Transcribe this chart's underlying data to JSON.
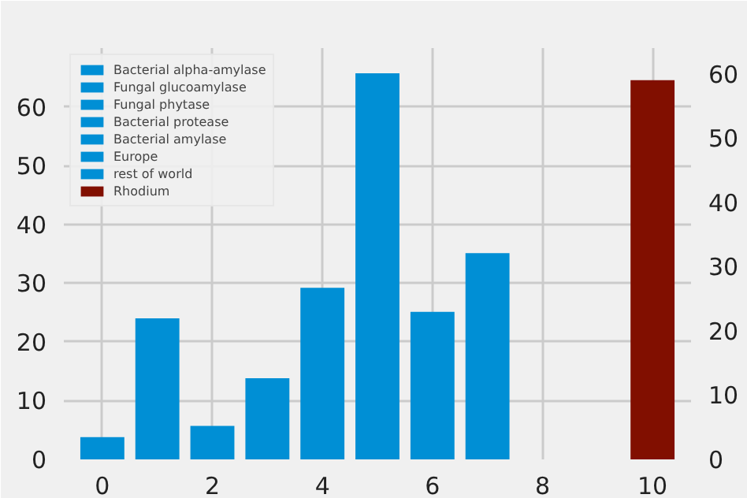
{
  "chart_data": {
    "type": "bar",
    "xlim": [
      -0.7,
      10.7
    ],
    "xticks": [
      0,
      2,
      4,
      6,
      8,
      10
    ],
    "ylim": [
      0,
      70
    ],
    "yticks": [
      0,
      10,
      20,
      30,
      40,
      50,
      60
    ],
    "y2lim": [
      0,
      64
    ],
    "y2ticks": [
      0,
      10,
      20,
      30,
      40,
      50,
      60
    ],
    "grid": true,
    "legend": "top left",
    "series": [
      {
        "name": "Bacterial alpha-amylase",
        "color": "#008fd5",
        "x": [
          0
        ],
        "values": [
          3.8
        ]
      },
      {
        "name": "Fungal glucoamylase",
        "color": "#008fd5",
        "x": [
          1
        ],
        "values": [
          24
        ]
      },
      {
        "name": "Fungal phytase",
        "color": "#008fd5",
        "x": [
          2
        ],
        "values": [
          5.7
        ]
      },
      {
        "name": "Bacterial protease",
        "color": "#008fd5",
        "x": [
          3
        ],
        "values": [
          13.8
        ]
      },
      {
        "name": "Bacterial amylase",
        "color": "#008fd5",
        "x": [
          4
        ],
        "values": [
          29.2
        ]
      },
      {
        "color": "#008fd5",
        "x": [
          5
        ],
        "values": [
          65.7
        ]
      },
      {
        "color": "#008fd5",
        "x": [
          6
        ],
        "values": [
          25.1
        ]
      },
      {
        "color": "#008fd5",
        "x": [
          7
        ],
        "values": [
          35.1
        ]
      },
      {
        "name": "Europe",
        "color": "#008fd5",
        "x": [
          8
        ],
        "values": [
          0
        ]
      },
      {
        "name": "rest of world",
        "color": "#008fd5",
        "x": [
          9
        ],
        "values": [
          0
        ]
      },
      {
        "name": "Rhodium",
        "color": "#810f00",
        "x": [
          10
        ],
        "values": [
          59
        ],
        "axis": "y2"
      }
    ]
  }
}
